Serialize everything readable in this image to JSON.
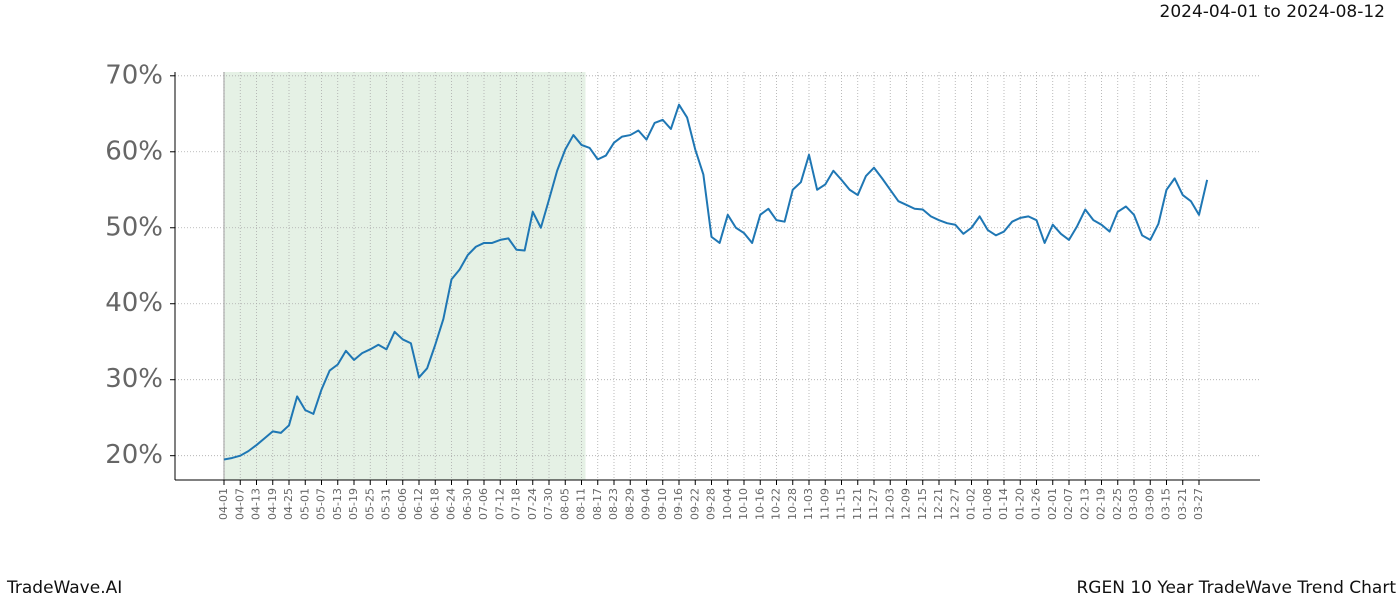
{
  "chart_data": {
    "type": "line",
    "title": "RGEN 10 Year TradeWave Trend Chart",
    "subtitle": "2024-04-01 to 2024-08-12",
    "brand": "TradeWave.AI",
    "categories": [
      "04-01",
      null,
      "04-07",
      null,
      "04-13",
      null,
      "04-19",
      null,
      "04-25",
      null,
      "05-01",
      null,
      "05-07",
      null,
      "05-13",
      null,
      "05-19",
      null,
      "05-25",
      null,
      "05-31",
      null,
      "06-06",
      null,
      "06-12",
      null,
      "06-18",
      null,
      "06-24",
      null,
      "06-30",
      null,
      "07-06",
      null,
      "07-12",
      null,
      "07-18",
      null,
      "07-24",
      null,
      "07-30",
      null,
      "08-05",
      null,
      "08-11",
      null,
      "08-17",
      null,
      "08-23",
      null,
      "08-29",
      null,
      "09-04",
      null,
      "09-10",
      null,
      "09-16",
      null,
      "09-22",
      null,
      "09-28",
      null,
      "10-04",
      null,
      "10-10",
      null,
      "10-16",
      null,
      "10-22",
      null,
      "10-28",
      null,
      "11-03",
      null,
      "11-09",
      null,
      "11-15",
      null,
      "11-21",
      null,
      "11-27",
      null,
      "12-03",
      null,
      "12-09",
      null,
      "12-15",
      null,
      "12-21",
      null,
      "12-27",
      null,
      "01-02",
      null,
      "01-08",
      null,
      "01-14",
      null,
      "01-20",
      null,
      "01-26",
      null,
      "02-01",
      null,
      "02-07",
      null,
      "02-13",
      null,
      "02-19",
      null,
      "02-25",
      null,
      "03-03",
      null,
      "03-09",
      null,
      "03-15",
      null,
      "03-21",
      null,
      "03-27",
      null
    ],
    "series": [
      {
        "name": "RGEN",
        "color": "#1f77b4",
        "values": [
          19.5,
          19.7,
          20.0,
          20.6,
          21.4,
          22.3,
          23.2,
          23.0,
          24.0,
          27.8,
          26.0,
          25.5,
          28.7,
          31.2,
          32.0,
          33.8,
          32.6,
          33.5,
          34.0,
          34.6,
          34.0,
          36.3,
          35.3,
          34.8,
          30.3,
          31.5,
          34.6,
          38.0,
          43.2,
          44.5,
          46.4,
          47.5,
          48.0,
          48.0,
          48.4,
          48.6,
          47.1,
          47.0,
          52.1,
          50.0,
          53.7,
          57.5,
          60.3,
          62.2,
          60.9,
          60.5,
          59.0,
          59.5,
          61.2,
          62.0,
          62.2,
          62.8,
          61.6,
          63.8,
          64.2,
          63.0,
          66.2,
          64.5,
          60.3,
          57.0,
          48.8,
          48.0,
          51.7,
          50.0,
          49.3,
          48.0,
          51.7,
          52.5,
          51.0,
          50.8,
          55.0,
          56.0,
          59.6,
          55.0,
          55.7,
          57.5,
          56.3,
          55.0,
          54.3,
          56.8,
          57.9,
          56.5,
          55.0,
          53.5,
          53.0,
          52.5,
          52.4,
          51.5,
          51.0,
          50.6,
          50.4,
          49.2,
          50.0,
          51.5,
          49.7,
          49.0,
          49.5,
          50.8,
          51.3,
          51.5,
          51.0,
          48.0,
          50.4,
          49.2,
          48.4,
          50.2,
          52.4,
          51.0,
          50.4,
          49.5,
          52.1,
          52.8,
          51.7,
          49.0,
          48.4,
          50.5,
          55.0,
          56.5,
          54.3,
          53.5,
          51.7,
          56.3
        ]
      }
    ],
    "ylim": [
      16.8,
      70.5
    ],
    "yticks": [
      {
        "value": 20,
        "label": "20%"
      },
      {
        "value": 30,
        "label": "30%"
      },
      {
        "value": 40,
        "label": "40%"
      },
      {
        "value": 50,
        "label": "50%"
      },
      {
        "value": 60,
        "label": "60%"
      },
      {
        "value": 70,
        "label": "70%"
      }
    ],
    "grid": true,
    "shaded_from": "04-01",
    "shaded_to": "08-11",
    "shade_color": "#e5f1e5"
  }
}
